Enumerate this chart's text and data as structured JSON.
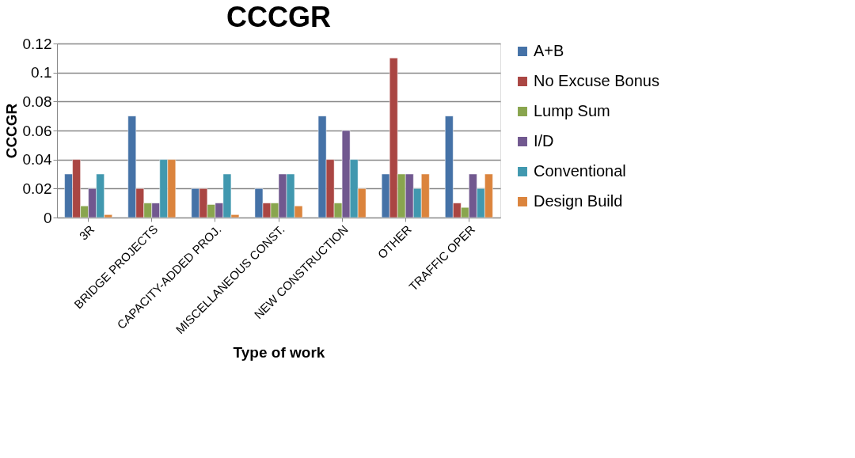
{
  "chart_data": {
    "type": "bar",
    "title": "CCCGR",
    "xlabel": "Type of work",
    "ylabel": "CCCGR",
    "categories": [
      "3R",
      "BRIDGE PROJECTS",
      "CAPACITY-ADDED PROJ.",
      "MISCELLANEOUS CONST.",
      "NEW CONSTRUCTION",
      "OTHER",
      "TRAFFIC OPER"
    ],
    "series": [
      {
        "name": "A+B",
        "color": "#4572a7",
        "values": [
          0.03,
          0.07,
          0.02,
          0.02,
          0.07,
          0.03,
          0.07
        ]
      },
      {
        "name": "No Excuse Bonus",
        "color": "#aa4643",
        "values": [
          0.04,
          0.02,
          0.02,
          0.01,
          0.04,
          0.11,
          0.01
        ]
      },
      {
        "name": "Lump Sum",
        "color": "#89a54e",
        "values": [
          0.008,
          0.01,
          0.009,
          0.01,
          0.01,
          0.03,
          0.007
        ]
      },
      {
        "name": "I/D",
        "color": "#71588f",
        "values": [
          0.02,
          0.01,
          0.01,
          0.03,
          0.06,
          0.03,
          0.03
        ]
      },
      {
        "name": "Conventional",
        "color": "#4198af",
        "values": [
          0.03,
          0.04,
          0.03,
          0.03,
          0.04,
          0.02,
          0.02
        ]
      },
      {
        "name": "Design Build",
        "color": "#db843d",
        "values": [
          0.002,
          0.04,
          0.002,
          0.008,
          0.02,
          0.03,
          0.03
        ]
      }
    ],
    "ylim": [
      0,
      0.12
    ],
    "yticks": [
      0,
      0.02,
      0.04,
      0.06,
      0.08,
      0.1,
      0.12
    ],
    "grid": "y",
    "legend": "right"
  }
}
